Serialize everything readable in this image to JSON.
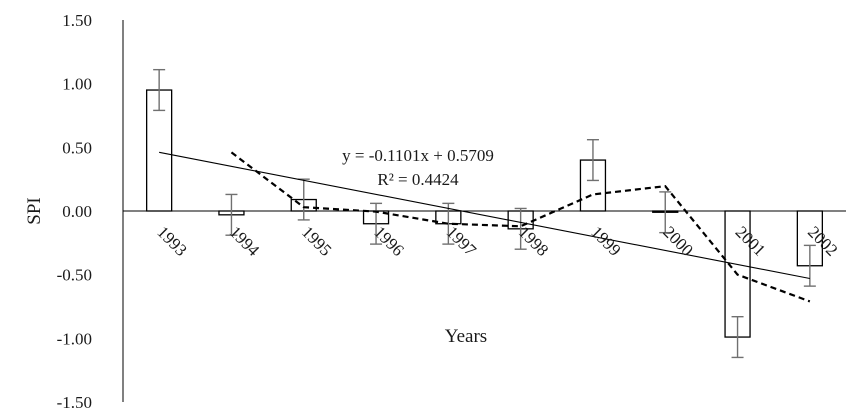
{
  "chart_data": {
    "type": "bar",
    "categories": [
      "1993",
      "1994",
      "1995",
      "1996",
      "1997",
      "1998",
      "1999",
      "2000",
      "2001",
      "2002"
    ],
    "values": [
      0.95,
      -0.03,
      0.09,
      -0.1,
      -0.1,
      -0.14,
      0.4,
      -0.01,
      -0.99,
      -0.43
    ],
    "error": [
      0.16,
      0.16,
      0.16,
      0.16,
      0.16,
      0.16,
      0.16,
      0.16,
      0.16,
      0.16
    ],
    "moving_average": [
      null,
      0.46,
      0.03,
      -0.005,
      -0.1,
      -0.12,
      0.13,
      0.195,
      -0.5,
      -0.71
    ],
    "trendline": {
      "slope": -0.1101,
      "intercept": 0.5709
    },
    "equation": "y = -0.1101x + 0.5709",
    "r_squared": "R² = 0.4424",
    "xlabel": "Years",
    "ylabel": "SPI",
    "ylim": [
      -1.5,
      1.5
    ],
    "yticks": [
      "1.50",
      "1.00",
      "0.50",
      "0.00",
      "-0.50",
      "-1.00",
      "-1.50"
    ],
    "ytick_values": [
      1.5,
      1.0,
      0.5,
      0.0,
      -0.5,
      -1.0,
      -1.5
    ],
    "grid": false,
    "legend": "none"
  }
}
